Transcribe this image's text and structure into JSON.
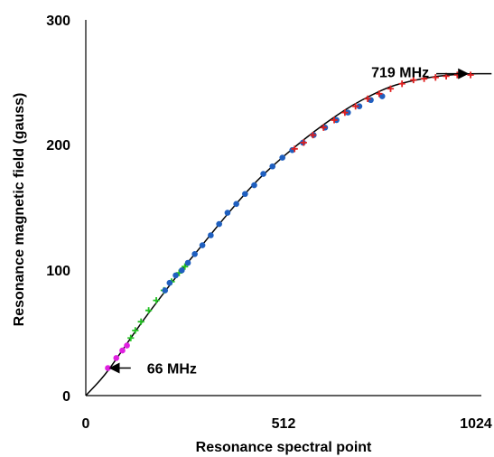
{
  "chart_data": {
    "type": "scatter",
    "title": "",
    "xlabel": "Resonance spectral point",
    "ylabel": "Resonance magnetic field (gauss)",
    "xlim": [
      0,
      1024
    ],
    "ylim": [
      0,
      300
    ],
    "x_ticks": [
      0,
      512,
      1024
    ],
    "x_tick_labels": [
      "0",
      "512",
      "1024"
    ],
    "y_ticks": [
      0,
      100,
      200,
      300
    ],
    "y_tick_labels": [
      "0",
      "100",
      "200",
      "300"
    ],
    "grid": false,
    "legend": "none",
    "fit_curve": {
      "color": "#000000",
      "points": [
        [
          0,
          0
        ],
        [
          50,
          16
        ],
        [
          100,
          38
        ],
        [
          150,
          60
        ],
        [
          200,
          80
        ],
        [
          250,
          100
        ],
        [
          300,
          118
        ],
        [
          350,
          137
        ],
        [
          400,
          155
        ],
        [
          450,
          172
        ],
        [
          500,
          186
        ],
        [
          550,
          199
        ],
        [
          600,
          211
        ],
        [
          650,
          222
        ],
        [
          700,
          232
        ],
        [
          750,
          240
        ],
        [
          800,
          247
        ],
        [
          850,
          251
        ],
        [
          900,
          254
        ],
        [
          950,
          256
        ],
        [
          1000,
          257
        ],
        [
          1065,
          257
        ]
      ]
    },
    "series": [
      {
        "color": "#e020e0",
        "marker": "circle",
        "points": [
          [
            58,
            22
          ],
          [
            80,
            30
          ],
          [
            96,
            36
          ],
          [
            108,
            40
          ]
        ]
      },
      {
        "color": "#22c022",
        "marker": "plus",
        "points": [
          [
            118,
            46
          ],
          [
            130,
            52
          ],
          [
            145,
            59
          ],
          [
            165,
            68
          ],
          [
            185,
            76
          ],
          [
            205,
            84
          ],
          [
            225,
            91
          ],
          [
            245,
            98
          ],
          [
            260,
            103
          ]
        ]
      },
      {
        "color": "#1f5fbf",
        "marker": "circle",
        "points": [
          [
            208,
            84
          ],
          [
            220,
            90
          ],
          [
            236,
            96
          ],
          [
            252,
            100
          ],
          [
            268,
            106
          ],
          [
            286,
            113
          ],
          [
            306,
            120
          ],
          [
            328,
            128
          ],
          [
            350,
            137
          ],
          [
            372,
            146
          ],
          [
            395,
            153
          ],
          [
            418,
            161
          ],
          [
            442,
            168
          ],
          [
            466,
            177
          ],
          [
            490,
            183
          ],
          [
            516,
            190
          ],
          [
            542,
            196
          ],
          [
            570,
            202
          ],
          [
            598,
            208
          ],
          [
            628,
            214
          ],
          [
            658,
            220
          ],
          [
            688,
            226
          ],
          [
            718,
            231
          ],
          [
            748,
            236
          ],
          [
            778,
            239
          ]
        ]
      },
      {
        "color": "#e02020",
        "marker": "plus",
        "points": [
          [
            548,
            197
          ],
          [
            572,
            202
          ],
          [
            596,
            208
          ],
          [
            624,
            214
          ],
          [
            652,
            220
          ],
          [
            680,
            226
          ],
          [
            708,
            231
          ],
          [
            740,
            237
          ],
          [
            770,
            241
          ],
          [
            800,
            245
          ],
          [
            830,
            249
          ],
          [
            860,
            252
          ],
          [
            888,
            253
          ],
          [
            918,
            254
          ],
          [
            946,
            255
          ],
          [
            975,
            256
          ],
          [
            1010,
            256
          ]
        ]
      }
    ],
    "annotations": [
      {
        "text": "66 MHz",
        "arrow_from": [
          118,
          22
        ],
        "arrow_to": [
          64,
          22
        ]
      },
      {
        "text": "719 MHz",
        "arrow_from": [
          920,
          257
        ],
        "arrow_to": [
          1002,
          257
        ]
      }
    ]
  }
}
